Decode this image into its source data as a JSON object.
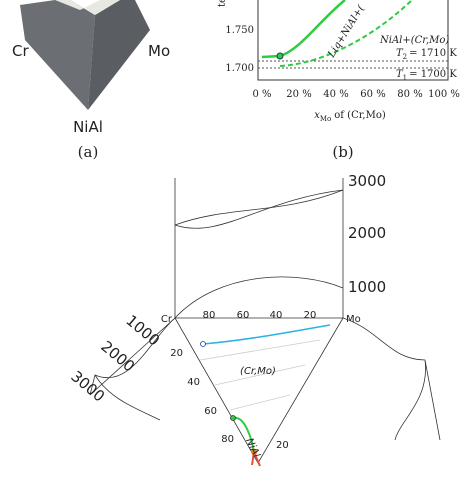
{
  "panel_a": {
    "labels": [
      "Cr",
      "Mo",
      "NiAl"
    ],
    "caption": "(a)"
  },
  "panel_b": {
    "y_label": "temper",
    "y_ticks": [
      "1.750",
      "1.700"
    ],
    "x_ticks": [
      "0 %",
      "20 %",
      "40 %",
      "60 %",
      "80 %",
      "100 %"
    ],
    "x_label": {
      "symbol": "x",
      "subscript": "Mo",
      "rest": "of (Cr,Mo)"
    },
    "curve_labels": [
      "Liq+NiAl+(",
      "NiAl+(Cr,Mo)"
    ],
    "lines": [
      {
        "symbol": "T",
        "subscript": "2",
        "rest": "= 1710 K"
      },
      {
        "symbol": "T",
        "subscript": "1",
        "rest": "= 1700 K"
      }
    ],
    "caption": "(b)"
  },
  "panel_c": {
    "vertical_ticks": [
      "3000",
      "2000",
      "1000"
    ],
    "corners": [
      "Cr",
      "Mo"
    ],
    "top_ticks": [
      "80",
      "60",
      "40",
      "20"
    ],
    "left_ticks": [
      "20",
      "40",
      "60",
      "80"
    ],
    "right_ticks": [
      "20"
    ],
    "regions": [
      "(Cr,Mo)",
      "NiAl"
    ],
    "oblique_ticks": [
      "1000",
      "2000",
      "3000"
    ]
  }
}
